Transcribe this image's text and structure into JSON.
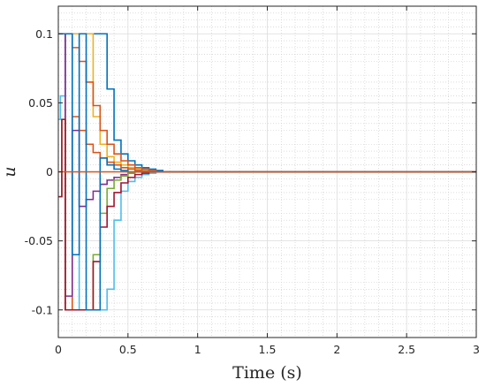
{
  "chart_data": {
    "type": "line",
    "step": true,
    "xlabel": "Time (s)",
    "ylabel": "u",
    "xlim": [
      0,
      3
    ],
    "ylim": [
      -0.12,
      0.12
    ],
    "xticks": [
      "0",
      "0.5",
      "1",
      "1.5",
      "2",
      "2.5",
      "3"
    ],
    "yticks": [
      "-0.1",
      "-0.05",
      "0",
      "0.05",
      "0.1"
    ],
    "grid": true,
    "minor_grid": true,
    "series": [
      {
        "color": "#0072BD",
        "x": [
          0,
          0.35,
          0.4,
          0.45,
          0.5,
          0.55,
          0.6,
          0.65,
          0.7,
          0.75,
          3
        ],
        "y": [
          0.1,
          0.06,
          0.023,
          0.013,
          0.008,
          0.005,
          0.003,
          0.002,
          0.001,
          0,
          0
        ]
      },
      {
        "color": "#EDB120",
        "x": [
          0,
          0.25,
          0.3,
          0.35,
          0.4,
          0.45,
          0.5,
          0.55,
          0.6,
          0.65,
          0.7,
          3
        ],
        "y": [
          0.1,
          0.04,
          0.02,
          0.011,
          0.007,
          0.005,
          0.003,
          0.002,
          0.001,
          0.0005,
          0,
          0
        ]
      },
      {
        "color": "#D95319",
        "x": [
          0,
          0.1,
          0.15,
          0.2,
          0.25,
          0.3,
          0.35,
          0.4,
          0.45,
          0.5,
          0.55,
          0.6,
          0.65,
          0.7,
          3
        ],
        "y": [
          0.1,
          0.09,
          0.08,
          0.065,
          0.048,
          0.03,
          0.02,
          0.013,
          0.008,
          0.005,
          0.003,
          0.002,
          0.001,
          0,
          0
        ]
      },
      {
        "color": "#D95319",
        "x": [
          0,
          0.05,
          0.1,
          0.15,
          0.2,
          0.25,
          0.3,
          0.35,
          0.4,
          0.45,
          0.5,
          0.55,
          0.6,
          0.65,
          0.7,
          3
        ],
        "y": [
          0.1,
          -0.1,
          0.04,
          0.03,
          0.02,
          0.014,
          0.01,
          0.007,
          0.005,
          0.003,
          0.002,
          0.001,
          0.0005,
          0,
          0,
          0
        ]
      },
      {
        "color": "#4DBEEE",
        "x": [
          0,
          0.015,
          0.05,
          0.1,
          0.15,
          0.2,
          0.25,
          0.3,
          0.35,
          0.4,
          0.45,
          0.5,
          0.55,
          0.6,
          0.65,
          0.7,
          3
        ],
        "y": [
          0.038,
          0.055,
          0.1,
          -0.06,
          -0.1,
          -0.1,
          -0.1,
          -0.1,
          -0.085,
          -0.035,
          -0.014,
          -0.007,
          -0.004,
          -0.002,
          -0.001,
          0,
          0
        ]
      },
      {
        "color": "#7E2F8E",
        "x": [
          0,
          0.05,
          0.1,
          0.15,
          0.2,
          0.25,
          0.3,
          0.35,
          0.4,
          0.45,
          0.5,
          0.55,
          0.6,
          0.65,
          3
        ],
        "y": [
          0.1,
          -0.09,
          0.03,
          -0.025,
          -0.02,
          -0.014,
          -0.009,
          -0.006,
          -0.004,
          -0.002,
          -0.001,
          0,
          0,
          0,
          0
        ]
      },
      {
        "color": "#77AC30",
        "x": [
          0,
          0.025,
          0.05,
          0.1,
          0.15,
          0.2,
          0.25,
          0.3,
          0.35,
          0.4,
          0.45,
          0.5,
          0.55,
          0.6,
          0.65,
          3
        ],
        "y": [
          -0.018,
          0.038,
          -0.1,
          -0.1,
          -0.1,
          -0.1,
          -0.06,
          -0.03,
          -0.012,
          -0.006,
          -0.003,
          -0.001,
          0,
          0,
          0,
          0
        ]
      },
      {
        "color": "#A2142F",
        "x": [
          0,
          0.025,
          0.05,
          0.1,
          0.15,
          0.2,
          0.25,
          0.3,
          0.35,
          0.4,
          0.45,
          0.5,
          0.55,
          0.6,
          0.65,
          3
        ],
        "y": [
          -0.018,
          0.038,
          -0.1,
          -0.1,
          -0.1,
          -0.1,
          -0.065,
          -0.04,
          -0.025,
          -0.015,
          -0.008,
          -0.004,
          -0.002,
          -0.001,
          0,
          0
        ]
      },
      {
        "color": "#0072BD",
        "x": [
          0,
          0.1,
          0.15,
          0.2,
          0.25,
          0.3,
          0.35,
          0.4,
          0.45,
          0.5,
          0.55,
          0.6,
          0.65,
          0.7,
          3
        ],
        "y": [
          0.1,
          -0.06,
          0.1,
          -0.1,
          -0.1,
          0.01,
          0.005,
          0.002,
          0.001,
          0,
          0,
          0,
          0,
          0,
          0
        ]
      },
      {
        "color": "#D95319",
        "x": [
          0,
          0.5,
          3
        ],
        "y": [
          0,
          0,
          0
        ]
      }
    ]
  }
}
